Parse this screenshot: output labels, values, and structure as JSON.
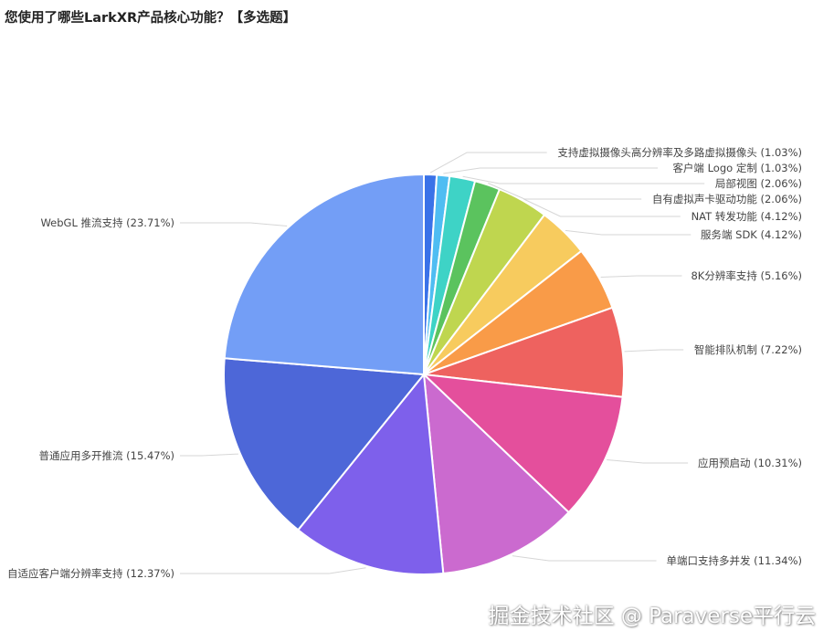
{
  "page": {
    "title": "您使用了哪些LarkXR产品核心功能？【多选题】"
  },
  "watermark": "掘金技术社区 @ Paraverse平行云",
  "chart_data": {
    "type": "pie",
    "title": "您使用了哪些LarkXR产品核心功能？【多选题】",
    "slices": [
      {
        "label": "支持虚拟摄像头高分辨率及多路虚拟摄像头",
        "value": 1.03,
        "display": "支持虚拟摄像头高分辨率及多路虚拟摄像头 (1.03%)",
        "color": "#3A72E8"
      },
      {
        "label": "客户端 Logo 定制",
        "value": 1.03,
        "display": "客户端 Logo 定制 (1.03%)",
        "color": "#4FBDF2"
      },
      {
        "label": "局部视图",
        "value": 2.06,
        "display": "局部视图 (2.06%)",
        "color": "#3ED3C6"
      },
      {
        "label": "自有虚拟声卡驱动功能",
        "value": 2.06,
        "display": "自有虚拟声卡驱动功能 (2.06%)",
        "color": "#5BC35E"
      },
      {
        "label": "NAT 转发功能",
        "value": 4.12,
        "display": "NAT 转发功能 (4.12%)",
        "color": "#BFD64F"
      },
      {
        "label": "服务端 SDK",
        "value": 4.12,
        "display": "服务端 SDK (4.12%)",
        "color": "#F7CB5E"
      },
      {
        "label": "8K分辨率支持",
        "value": 5.16,
        "display": "8K分辨率支持 (5.16%)",
        "color": "#F99B48"
      },
      {
        "label": "智能排队机制",
        "value": 7.22,
        "display": "智能排队机制 (7.22%)",
        "color": "#EE625F"
      },
      {
        "label": "应用预启动",
        "value": 10.31,
        "display": "应用预启动 (10.31%)",
        "color": "#E44F9C"
      },
      {
        "label": "单端口支持多并发",
        "value": 11.34,
        "display": "单端口支持多并发 (11.34%)",
        "color": "#CB6ACF"
      },
      {
        "label": "自适应客户端分辨率支持",
        "value": 12.37,
        "display": "自适应客户端分辨率支持 (12.37%)",
        "color": "#7E60EB"
      },
      {
        "label": "普通应用多开推流",
        "value": 15.47,
        "display": "普通应用多开推流 (15.47%)",
        "color": "#4D67D8"
      },
      {
        "label": "WebGL 推流支持",
        "value": 23.71,
        "display": "WebGL 推流支持 (23.71%)",
        "color": "#739EF6"
      }
    ]
  }
}
